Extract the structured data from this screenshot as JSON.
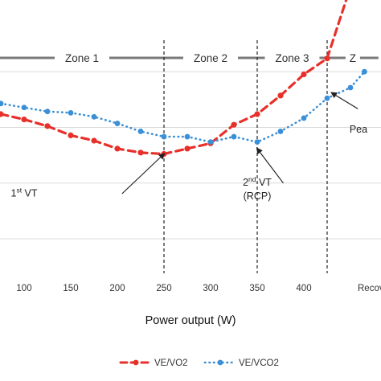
{
  "chart_data": {
    "type": "line",
    "xlabel": "Power output (W)",
    "x_ticks": [
      "100",
      "150",
      "200",
      "250",
      "300",
      "350",
      "400",
      "Recov"
    ],
    "xlim": [
      75,
      465
    ],
    "ylim": [
      0,
      10
    ],
    "zones": [
      {
        "label": "Zone 1",
        "from": 60,
        "to": 250
      },
      {
        "label": "Zone 2",
        "from": 250,
        "to": 350
      },
      {
        "label": "Zone 3",
        "from": 350,
        "to": 425
      },
      {
        "label": "Z",
        "from": 425,
        "to": 480
      }
    ],
    "thresholds": [
      250,
      350,
      425
    ],
    "annotations": [
      {
        "lines": [
          "1",
          "st",
          " VT"
        ],
        "label": "1st VT",
        "text_at": [
          100,
          2.9
        ],
        "arrow_from": [
          205,
          3.0
        ],
        "arrow_to": [
          250,
          4.5
        ]
      },
      {
        "lines": [
          "2",
          "nd",
          " VT"
        ],
        "label": "2nd VT",
        "sub": "(RCP)",
        "text_at": [
          350,
          3.3
        ],
        "arrow_from": [
          378,
          3.4
        ],
        "arrow_to": [
          350,
          4.7
        ]
      },
      {
        "label": "Pea",
        "text_at": [
          449,
          5.3
        ],
        "arrow_from": [
          458,
          6.2
        ],
        "arrow_to": [
          430,
          6.8
        ]
      }
    ],
    "series": [
      {
        "name": "VE/VO2",
        "color": "#e8302a",
        "style": "dashed",
        "x": [
          75,
          100,
          125,
          150,
          175,
          200,
          225,
          250,
          275,
          300,
          325,
          350,
          375,
          400,
          425,
          450
        ],
        "y": [
          6.0,
          5.8,
          5.55,
          5.2,
          5.0,
          4.7,
          4.55,
          4.5,
          4.7,
          4.9,
          5.6,
          6.0,
          6.7,
          7.5,
          8.1,
          10.8
        ]
      },
      {
        "name": "VE/VCO2",
        "color": "#3a8fd6",
        "style": "dotted",
        "x": [
          75,
          100,
          125,
          150,
          175,
          200,
          225,
          250,
          275,
          300,
          325,
          350,
          375,
          400,
          425,
          450,
          465
        ],
        "y": [
          6.4,
          6.25,
          6.1,
          6.05,
          5.9,
          5.65,
          5.35,
          5.15,
          5.15,
          4.95,
          5.15,
          4.95,
          5.35,
          5.85,
          6.6,
          7.0,
          7.6
        ]
      }
    ]
  }
}
